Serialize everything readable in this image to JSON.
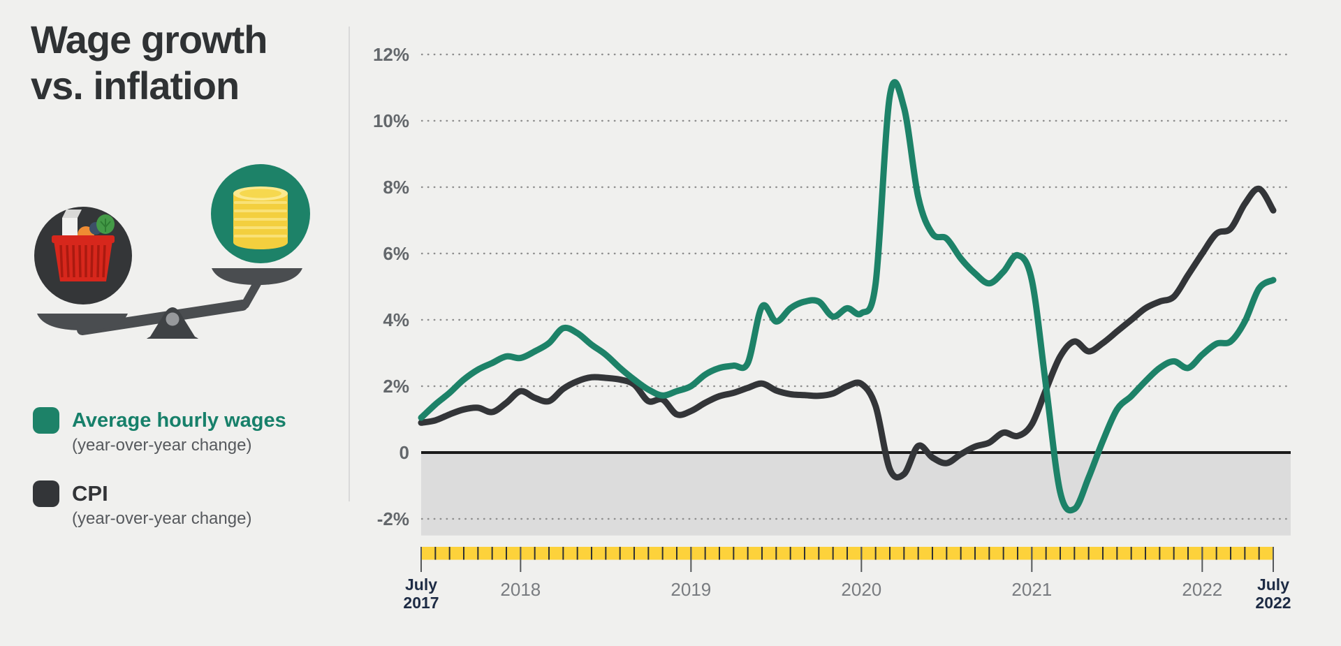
{
  "page": {
    "title_line1": "Wage growth",
    "title_line2": "vs. inflation",
    "background_color": "#f0f0ee"
  },
  "colors": {
    "wages_green": "#1d8268",
    "cpi_dark": "#333538",
    "ruler_yellow": "#fdd23b",
    "axis_label_gray": "#63676b",
    "year_label_gray": "#797c80",
    "july_label_navy": "#1d2b44",
    "below_zero_shade": "#dcdcdc",
    "zero_line": "#1a1a1a",
    "gridline_dot": "#8e8e8e"
  },
  "legend": [
    {
      "label": "Average hourly wages",
      "sublabel": "(year-over-year change)",
      "swatch_color": "#1d8268",
      "label_color": "#17806a"
    },
    {
      "label": "CPI",
      "sublabel": "(year-over-year change)",
      "swatch_color": "#333538",
      "label_color": "#323437"
    }
  ],
  "illustration": {
    "name": "balance-scale-with-groceries-and-coins",
    "left_side": "grocery basket (dark circle, lower pan)",
    "right_side": "coin stack (green circle, upper pan)"
  },
  "chart_data": {
    "type": "line",
    "title": "Wage growth vs. inflation",
    "x_unit": "month",
    "x_start": "July 2017",
    "x_end": "July 2022",
    "n_points": 61,
    "ylim": [
      -2.5,
      12.6
    ],
    "grid": "dotted horizontal",
    "y_ticks": [
      {
        "label": "12%",
        "value": 12
      },
      {
        "label": "10%",
        "value": 10
      },
      {
        "label": "8%",
        "value": 8
      },
      {
        "label": "6%",
        "value": 6
      },
      {
        "label": "4%",
        "value": 4
      },
      {
        "label": "2%",
        "value": 2
      },
      {
        "label": "0",
        "value": 0
      },
      {
        "label": "-2%",
        "value": -2
      }
    ],
    "x_axis_labels": [
      {
        "label": "July 2017",
        "month_index": 0,
        "emphasis": true
      },
      {
        "label": "2018",
        "month_index": 7,
        "emphasis": false
      },
      {
        "label": "2019",
        "month_index": 19,
        "emphasis": false
      },
      {
        "label": "2020",
        "month_index": 31,
        "emphasis": false
      },
      {
        "label": "2021",
        "month_index": 43,
        "emphasis": false
      },
      {
        "label": "2022",
        "month_index": 55,
        "emphasis": false
      },
      {
        "label": "July 2022",
        "month_index": 60,
        "emphasis": true
      }
    ],
    "shaded_region": {
      "from": 0,
      "to": -2.5,
      "color": "#dcdcdc"
    },
    "ruler": {
      "color": "#fdd23b",
      "tick_count": 61,
      "long_tick_months": [
        0,
        7,
        19,
        31,
        43,
        55,
        60
      ]
    },
    "series": [
      {
        "name": "CPI (year-over-year change)",
        "color": "#333538",
        "values": [
          0.9,
          0.97,
          1.15,
          1.3,
          1.35,
          1.22,
          1.5,
          1.85,
          1.65,
          1.55,
          1.92,
          2.15,
          2.27,
          2.25,
          2.2,
          2.05,
          1.55,
          1.6,
          1.15,
          1.25,
          1.5,
          1.7,
          1.8,
          1.95,
          2.08,
          1.87,
          1.76,
          1.73,
          1.71,
          1.78,
          2.0,
          2.07,
          1.4,
          -0.5,
          -0.65,
          0.2,
          -0.15,
          -0.32,
          -0.05,
          0.18,
          0.3,
          0.6,
          0.5,
          0.85,
          1.9,
          2.9,
          3.35,
          3.05,
          3.3,
          3.65,
          4.0,
          4.35,
          4.55,
          4.7,
          5.35,
          6.0,
          6.6,
          6.75,
          7.5,
          7.95,
          7.3
        ]
      },
      {
        "name": "Average hourly wages (year-over-year change)",
        "color": "#1d8268",
        "values": [
          1.05,
          1.45,
          1.8,
          2.2,
          2.5,
          2.7,
          2.9,
          2.85,
          3.05,
          3.3,
          3.75,
          3.6,
          3.25,
          2.95,
          2.55,
          2.2,
          1.9,
          1.72,
          1.85,
          2.0,
          2.35,
          2.55,
          2.62,
          2.7,
          4.4,
          3.95,
          4.35,
          4.55,
          4.55,
          4.1,
          4.35,
          4.2,
          5.1,
          10.75,
          10.4,
          7.7,
          6.6,
          6.45,
          5.85,
          5.4,
          5.1,
          5.45,
          5.95,
          5.2,
          2.0,
          -1.2,
          -1.7,
          -0.75,
          0.35,
          1.3,
          1.7,
          2.15,
          2.55,
          2.75,
          2.55,
          2.95,
          3.28,
          3.35,
          3.95,
          4.95,
          5.2
        ]
      }
    ]
  }
}
